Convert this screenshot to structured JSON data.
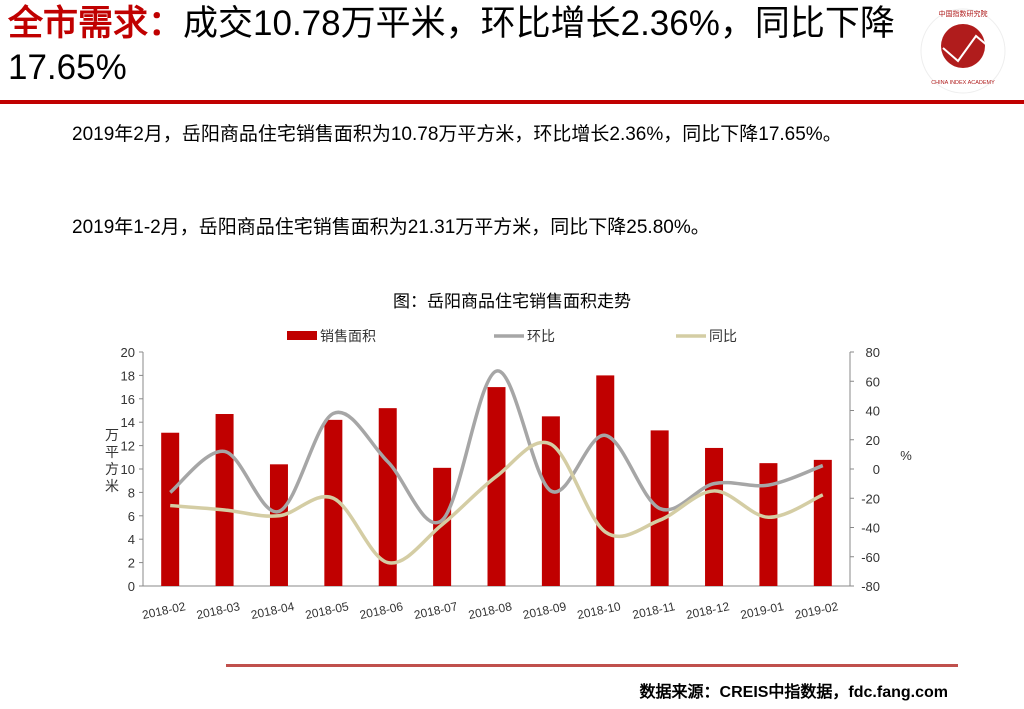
{
  "header": {
    "title_highlight": "全市需求：",
    "title_rest": "成交10.78万平米，环比增长2.36%，同比下降17.65%"
  },
  "logo": {
    "ring_text": "中国指数研究院",
    "english": "CHINA INDEX ACADEMY",
    "center": "中指"
  },
  "body": {
    "paragraph1": "2019年2月，岳阳商品住宅销售面积为10.78万平方米，环比增长2.36%，同比下降17.65%。",
    "paragraph2": "2019年1-2月，岳阳商品住宅销售面积为21.31万平方米，同比下降25.80%。"
  },
  "chart_data": {
    "type": "bar",
    "title": "图：岳阳商品住宅销售面积走势",
    "categories": [
      "2018-02",
      "2018-03",
      "2018-04",
      "2018-05",
      "2018-06",
      "2018-07",
      "2018-08",
      "2018-09",
      "2018-10",
      "2018-11",
      "2018-12",
      "2019-01",
      "2019-02"
    ],
    "series": [
      {
        "name": "销售面积",
        "type": "bar",
        "axis": "left",
        "color": "#c00000",
        "values": [
          13.1,
          14.7,
          10.4,
          14.2,
          15.2,
          10.1,
          17.0,
          14.5,
          18.0,
          13.3,
          11.8,
          10.5,
          10.78
        ]
      },
      {
        "name": "环比",
        "type": "line",
        "axis": "right",
        "color": "#a6a6a6",
        "values": [
          -16,
          12,
          -29,
          38,
          5,
          -35,
          67,
          -15,
          23,
          -27,
          -10,
          -11,
          2.36
        ]
      },
      {
        "name": "同比",
        "type": "line",
        "axis": "right",
        "color": "#d4cda4",
        "values": [
          -25,
          -28,
          -32,
          -20,
          -64,
          -38,
          -5,
          17,
          -43,
          -35,
          -15,
          -33,
          -17.65
        ]
      }
    ],
    "ylabel": "万平方米",
    "y2label": "%",
    "ylim": [
      0,
      20
    ],
    "yticks": [
      "0",
      "2",
      "4",
      "6",
      "8",
      "10",
      "12",
      "14",
      "16",
      "18",
      "20"
    ],
    "y2lim": [
      -80,
      80
    ],
    "y2ticks": [
      "-80",
      "-60",
      "-40",
      "-20",
      "0",
      "20",
      "40",
      "60",
      "80"
    ],
    "legend": "top",
    "grid": false
  },
  "footer": {
    "source": "数据来源：CREIS中指数据，fdc.fang.com"
  }
}
